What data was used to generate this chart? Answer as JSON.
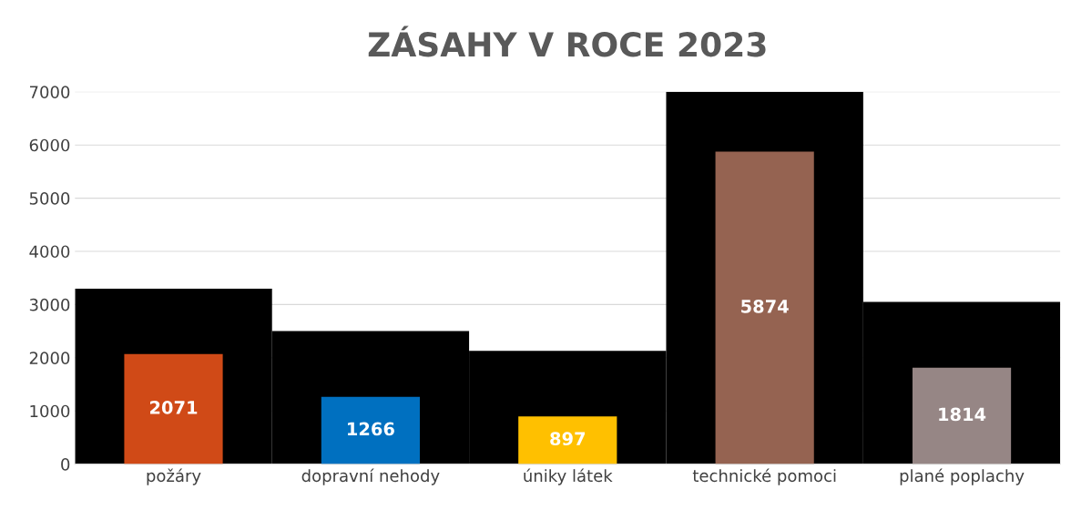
{
  "chart_data": {
    "type": "bar",
    "title": "ZÁSAHY V ROCE 2023",
    "categories": [
      "požáry",
      "dopravní nehody",
      "úniky látek",
      "technické pomoci",
      "plané poplachy"
    ],
    "series": [
      {
        "color": "#000000",
        "values": [
          3300,
          2500,
          2130,
          7000,
          3050
        ]
      },
      {
        "colors": [
          "#d04a17",
          "#0070c0",
          "#ffc000",
          "#956351",
          "#968685"
        ],
        "values": [
          2071,
          1266,
          897,
          5874,
          1814
        ],
        "value_labels": [
          "2071",
          "1266",
          "897",
          "5874",
          "1814"
        ]
      }
    ],
    "ylim": [
      0,
      7000
    ],
    "yticks": [
      0,
      1000,
      2000,
      3000,
      4000,
      5000,
      6000,
      7000
    ],
    "grid": "y"
  }
}
